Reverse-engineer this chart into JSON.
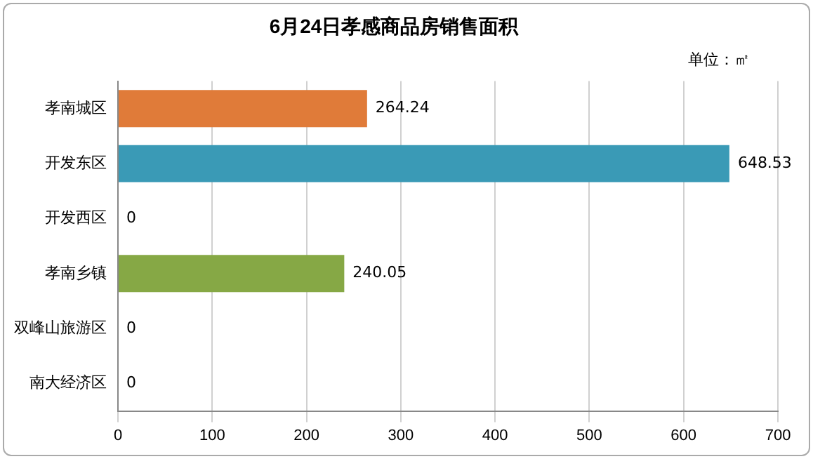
{
  "chart_data": {
    "type": "bar",
    "orientation": "horizontal",
    "title": "6月24日孝感商品房销售面积",
    "annotations": [
      "单位：㎡"
    ],
    "categories": [
      "孝南城区",
      "开发东区",
      "开发西区",
      "孝南乡镇",
      "双峰山旅游区",
      "南大经济区"
    ],
    "values": [
      264.24,
      648.53,
      0,
      240.05,
      0,
      0
    ],
    "colors": [
      "#e07b39",
      "#3a9ab6",
      "#4f81bd",
      "#86a845",
      "#4f81bd",
      "#4f81bd"
    ],
    "xlim": [
      0,
      700
    ],
    "xticks": [
      0,
      100,
      200,
      300,
      400,
      500,
      600,
      700
    ],
    "grid": "x",
    "data_labels": true,
    "legend": false
  }
}
